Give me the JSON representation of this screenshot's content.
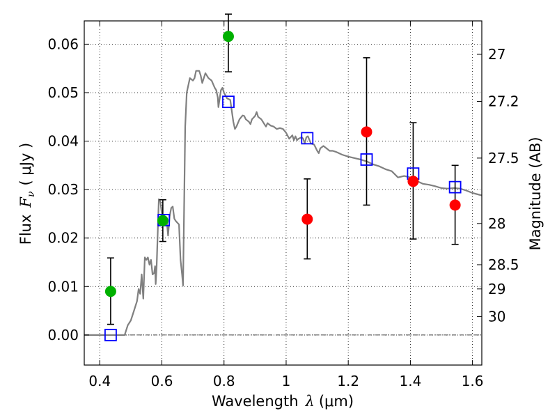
{
  "chart_data": {
    "type": "scatter",
    "title": "",
    "xlabel": {
      "prefix": "Wavelength",
      "symbol": "λ",
      "unit": "(μm)"
    },
    "ylabel": {
      "prefix": "Flux",
      "symbol": "F",
      "subscript": "ν",
      "unit": "( μJy )"
    },
    "ylabel_right": "Magnitude (AB)",
    "xlim": [
      0.35,
      1.63
    ],
    "ylim": [
      -0.0062,
      0.0648
    ],
    "grid": true,
    "x_ticks": [
      {
        "value": 0.4,
        "label": "0.4"
      },
      {
        "value": 0.6,
        "label": "0.6"
      },
      {
        "value": 0.8,
        "label": "0.8"
      },
      {
        "value": 1.0,
        "label": "1"
      },
      {
        "value": 1.2,
        "label": "1.2"
      },
      {
        "value": 1.4,
        "label": "1.4"
      },
      {
        "value": 1.6,
        "label": "1.6"
      }
    ],
    "y_ticks": [
      {
        "value": 0.0,
        "label": "0.00"
      },
      {
        "value": 0.01,
        "label": "0.01"
      },
      {
        "value": 0.02,
        "label": "0.02"
      },
      {
        "value": 0.03,
        "label": "0.03"
      },
      {
        "value": 0.04,
        "label": "0.04"
      },
      {
        "value": 0.05,
        "label": "0.05"
      },
      {
        "value": 0.06,
        "label": "0.06"
      }
    ],
    "mag_ticks": [
      {
        "label": "27",
        "flux": 0.0579
      },
      {
        "label": "27.2",
        "flux": 0.0482
      },
      {
        "label": "27.5",
        "flux": 0.0365
      },
      {
        "label": "28",
        "flux": 0.023
      },
      {
        "label": "28.5",
        "flux": 0.0145
      },
      {
        "label": "29",
        "flux": 0.0095
      },
      {
        "label": "30",
        "flux": 0.0038
      }
    ],
    "zero_line": 0.0,
    "model_sed": {
      "name": "model spectrum",
      "color": "#808080",
      "points": [
        [
          0.35,
          0.0
        ],
        [
          0.48,
          0.0
        ],
        [
          0.49,
          0.002
        ],
        [
          0.5,
          0.003
        ],
        [
          0.51,
          0.005
        ],
        [
          0.52,
          0.007
        ],
        [
          0.525,
          0.0095
        ],
        [
          0.53,
          0.0085
        ],
        [
          0.535,
          0.0125
        ],
        [
          0.54,
          0.0075
        ],
        [
          0.545,
          0.016
        ],
        [
          0.55,
          0.0155
        ],
        [
          0.555,
          0.016
        ],
        [
          0.56,
          0.0145
        ],
        [
          0.565,
          0.0155
        ],
        [
          0.57,
          0.0125
        ],
        [
          0.575,
          0.0128
        ],
        [
          0.578,
          0.0142
        ],
        [
          0.58,
          0.0105
        ],
        [
          0.583,
          0.0138
        ],
        [
          0.59,
          0.028
        ],
        [
          0.595,
          0.0275
        ],
        [
          0.6,
          0.025
        ],
        [
          0.61,
          0.0235
        ],
        [
          0.615,
          0.024
        ],
        [
          0.62,
          0.0205
        ],
        [
          0.625,
          0.0245
        ],
        [
          0.63,
          0.0262
        ],
        [
          0.635,
          0.0265
        ],
        [
          0.64,
          0.024
        ],
        [
          0.645,
          0.0235
        ],
        [
          0.655,
          0.0228
        ],
        [
          0.66,
          0.0155
        ],
        [
          0.665,
          0.0125
        ],
        [
          0.668,
          0.0102
        ],
        [
          0.672,
          0.028
        ],
        [
          0.675,
          0.043
        ],
        [
          0.68,
          0.05
        ],
        [
          0.69,
          0.053
        ],
        [
          0.7,
          0.0525
        ],
        [
          0.705,
          0.053
        ],
        [
          0.71,
          0.0545
        ],
        [
          0.72,
          0.0545
        ],
        [
          0.725,
          0.0535
        ],
        [
          0.73,
          0.052
        ],
        [
          0.74,
          0.054
        ],
        [
          0.75,
          0.053
        ],
        [
          0.76,
          0.0525
        ],
        [
          0.77,
          0.051
        ],
        [
          0.775,
          0.0505
        ],
        [
          0.78,
          0.049
        ],
        [
          0.782,
          0.047
        ],
        [
          0.79,
          0.0505
        ],
        [
          0.795,
          0.051
        ],
        [
          0.8,
          0.05
        ],
        [
          0.81,
          0.0488
        ],
        [
          0.82,
          0.0485
        ],
        [
          0.83,
          0.044
        ],
        [
          0.835,
          0.0425
        ],
        [
          0.84,
          0.043
        ],
        [
          0.85,
          0.0445
        ],
        [
          0.86,
          0.0453
        ],
        [
          0.865,
          0.0452
        ],
        [
          0.87,
          0.0445
        ],
        [
          0.88,
          0.044
        ],
        [
          0.885,
          0.0435
        ],
        [
          0.89,
          0.0445
        ],
        [
          0.9,
          0.0452
        ],
        [
          0.905,
          0.046
        ],
        [
          0.91,
          0.045
        ],
        [
          0.92,
          0.0445
        ],
        [
          0.93,
          0.0435
        ],
        [
          0.935,
          0.043
        ],
        [
          0.94,
          0.0437
        ],
        [
          0.95,
          0.0432
        ],
        [
          0.96,
          0.043
        ],
        [
          0.97,
          0.0425
        ],
        [
          0.98,
          0.0427
        ],
        [
          0.99,
          0.0425
        ],
        [
          1.0,
          0.0417
        ],
        [
          1.01,
          0.0405
        ],
        [
          1.02,
          0.0412
        ],
        [
          1.025,
          0.0402
        ],
        [
          1.03,
          0.041
        ],
        [
          1.035,
          0.0402
        ],
        [
          1.04,
          0.0405
        ],
        [
          1.05,
          0.0408
        ],
        [
          1.055,
          0.0405
        ],
        [
          1.06,
          0.0395
        ],
        [
          1.065,
          0.0408
        ],
        [
          1.07,
          0.041
        ],
        [
          1.08,
          0.0395
        ],
        [
          1.09,
          0.0393
        ],
        [
          1.1,
          0.038
        ],
        [
          1.105,
          0.0375
        ],
        [
          1.11,
          0.0385
        ],
        [
          1.12,
          0.039
        ],
        [
          1.13,
          0.0385
        ],
        [
          1.14,
          0.038
        ],
        [
          1.15,
          0.038
        ],
        [
          1.16,
          0.0378
        ],
        [
          1.17,
          0.0375
        ],
        [
          1.18,
          0.0372
        ],
        [
          1.2,
          0.0368
        ],
        [
          1.22,
          0.0365
        ],
        [
          1.24,
          0.0362
        ],
        [
          1.26,
          0.0358
        ],
        [
          1.28,
          0.0352
        ],
        [
          1.3,
          0.0348
        ],
        [
          1.32,
          0.0342
        ],
        [
          1.34,
          0.0338
        ],
        [
          1.36,
          0.0325
        ],
        [
          1.38,
          0.0328
        ],
        [
          1.4,
          0.0325
        ],
        [
          1.42,
          0.0318
        ],
        [
          1.44,
          0.0312
        ],
        [
          1.46,
          0.031
        ],
        [
          1.48,
          0.0307
        ],
        [
          1.5,
          0.0303
        ],
        [
          1.52,
          0.0302
        ],
        [
          1.54,
          0.0303
        ],
        [
          1.56,
          0.0302
        ],
        [
          1.58,
          0.0298
        ],
        [
          1.6,
          0.0293
        ],
        [
          1.63,
          0.0288
        ]
      ]
    },
    "series": [
      {
        "name": "green detections",
        "marker": "circle",
        "color": "#00b000",
        "points": [
          {
            "x": 0.435,
            "y": 0.009,
            "lo": 0.0022,
            "hi": 0.0159
          },
          {
            "x": 0.603,
            "y": 0.0236,
            "lo": 0.0193,
            "hi": 0.0279
          },
          {
            "x": 0.814,
            "y": 0.0616,
            "lo": 0.0543,
            "hi": 0.0662
          }
        ]
      },
      {
        "name": "red detections",
        "marker": "circle",
        "color": "#ff0000",
        "points": [
          {
            "x": 1.068,
            "y": 0.0239,
            "lo": 0.0157,
            "hi": 0.0322
          },
          {
            "x": 1.259,
            "y": 0.0419,
            "lo": 0.0268,
            "hi": 0.0572
          },
          {
            "x": 1.409,
            "y": 0.0317,
            "lo": 0.0198,
            "hi": 0.0438
          },
          {
            "x": 1.544,
            "y": 0.0268,
            "lo": 0.0187,
            "hi": 0.035
          }
        ]
      },
      {
        "name": "model photometry",
        "marker": "open-square",
        "color": "#0000ff",
        "points": [
          {
            "x": 0.435,
            "y": 0.0
          },
          {
            "x": 0.606,
            "y": 0.0237
          },
          {
            "x": 0.814,
            "y": 0.0481
          },
          {
            "x": 1.068,
            "y": 0.0406
          },
          {
            "x": 1.259,
            "y": 0.0362
          },
          {
            "x": 1.409,
            "y": 0.0333
          },
          {
            "x": 1.544,
            "y": 0.0305
          }
        ]
      }
    ]
  }
}
